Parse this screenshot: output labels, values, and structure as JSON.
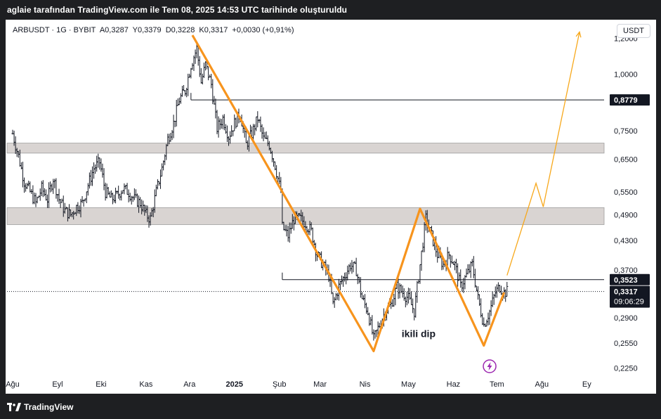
{
  "header": {
    "attribution": "aglaie tarafından TradingView.com ile Tem 08, 2025 14:53 UTC tarihinde oluşturuldu"
  },
  "legend": {
    "symbol": "ARBUSDT · 1G · BYBIT",
    "open": "A0,3287",
    "high": "Y0,3379",
    "low": "D0,3228",
    "close": "K0,3317",
    "change": "+0,0030 (+0,91%)"
  },
  "currency_button": "USDT",
  "footer": {
    "brand": "TradingView"
  },
  "colors": {
    "pattern_line": "#f7941d",
    "projection_line": "#f7a81b",
    "zone_fill": "#d9d4d2",
    "candle": "#131722",
    "live_badge": "#131722",
    "lightning_badge": "#9c27b0"
  },
  "chart_data": {
    "type": "candlestick",
    "title": "",
    "xlabel": "",
    "ylabel": "",
    "y_scale": "log",
    "ylim": [
      0.215,
      1.32
    ],
    "x_range": [
      "2024-08-01",
      "2025-09-12"
    ],
    "x_ticks": [
      {
        "date": "2024-08-01",
        "label": "Ağu",
        "bold": false
      },
      {
        "date": "2024-09-01",
        "label": "Eyl",
        "bold": false
      },
      {
        "date": "2024-10-01",
        "label": "Eki",
        "bold": false
      },
      {
        "date": "2024-11-01",
        "label": "Kas",
        "bold": false
      },
      {
        "date": "2024-12-01",
        "label": "Ara",
        "bold": false
      },
      {
        "date": "2025-01-01",
        "label": "2025",
        "bold": true
      },
      {
        "date": "2025-02-01",
        "label": "Şub",
        "bold": false
      },
      {
        "date": "2025-03-01",
        "label": "Mar",
        "bold": false
      },
      {
        "date": "2025-04-01",
        "label": "Nis",
        "bold": false
      },
      {
        "date": "2025-05-01",
        "label": "May",
        "bold": false
      },
      {
        "date": "2025-06-01",
        "label": "Haz",
        "bold": false
      },
      {
        "date": "2025-07-01",
        "label": "Tem",
        "bold": false
      },
      {
        "date": "2025-08-01",
        "label": "Ağu",
        "bold": false
      },
      {
        "date": "2025-09-01",
        "label": "Ey",
        "bold": false
      }
    ],
    "y_ticks": [
      {
        "value": 1.2,
        "label": "1,2000"
      },
      {
        "value": 1.0,
        "label": "1,0000"
      },
      {
        "value": 0.75,
        "label": "0,7500"
      },
      {
        "value": 0.65,
        "label": "0,6500"
      },
      {
        "value": 0.55,
        "label": "0,5500"
      },
      {
        "value": 0.49,
        "label": "0,4900"
      },
      {
        "value": 0.43,
        "label": "0,4300"
      },
      {
        "value": 0.37,
        "label": "0,3700"
      },
      {
        "value": 0.29,
        "label": "0,2900"
      },
      {
        "value": 0.255,
        "label": "0,2550"
      },
      {
        "value": 0.225,
        "label": "0,2250"
      }
    ],
    "price_path": [
      [
        "2024-08-01",
        0.74
      ],
      [
        "2024-08-05",
        0.66
      ],
      [
        "2024-08-09",
        0.58
      ],
      [
        "2024-08-13",
        0.55
      ],
      [
        "2024-08-17",
        0.52
      ],
      [
        "2024-08-21",
        0.56
      ],
      [
        "2024-08-25",
        0.53
      ],
      [
        "2024-08-29",
        0.59
      ],
      [
        "2024-09-02",
        0.53
      ],
      [
        "2024-09-06",
        0.5
      ],
      [
        "2024-09-10",
        0.49
      ],
      [
        "2024-09-14",
        0.51
      ],
      [
        "2024-09-18",
        0.52
      ],
      [
        "2024-09-22",
        0.57
      ],
      [
        "2024-09-26",
        0.62
      ],
      [
        "2024-09-30",
        0.64
      ],
      [
        "2024-10-04",
        0.55
      ],
      [
        "2024-10-08",
        0.53
      ],
      [
        "2024-10-12",
        0.54
      ],
      [
        "2024-10-16",
        0.56
      ],
      [
        "2024-10-20",
        0.55
      ],
      [
        "2024-10-24",
        0.53
      ],
      [
        "2024-10-28",
        0.52
      ],
      [
        "2024-11-01",
        0.49
      ],
      [
        "2024-11-04",
        0.48
      ],
      [
        "2024-11-08",
        0.55
      ],
      [
        "2024-11-12",
        0.62
      ],
      [
        "2024-11-16",
        0.72
      ],
      [
        "2024-11-20",
        0.78
      ],
      [
        "2024-11-24",
        0.88
      ],
      [
        "2024-11-28",
        0.92
      ],
      [
        "2024-12-02",
        1.05
      ],
      [
        "2024-12-06",
        1.14
      ],
      [
        "2024-12-09",
        0.96
      ],
      [
        "2024-12-12",
        1.05
      ],
      [
        "2024-12-16",
        0.95
      ],
      [
        "2024-12-20",
        0.76
      ],
      [
        "2024-12-24",
        0.8
      ],
      [
        "2024-12-28",
        0.73
      ],
      [
        "2025-01-01",
        0.78
      ],
      [
        "2025-01-05",
        0.82
      ],
      [
        "2025-01-09",
        0.7
      ],
      [
        "2025-01-13",
        0.74
      ],
      [
        "2025-01-17",
        0.8
      ],
      [
        "2025-01-21",
        0.72
      ],
      [
        "2025-01-25",
        0.7
      ],
      [
        "2025-01-29",
        0.63
      ],
      [
        "2025-02-02",
        0.55
      ],
      [
        "2025-02-03",
        0.46
      ],
      [
        "2025-02-07",
        0.44
      ],
      [
        "2025-02-11",
        0.48
      ],
      [
        "2025-02-15",
        0.48
      ],
      [
        "2025-02-19",
        0.47
      ],
      [
        "2025-02-23",
        0.45
      ],
      [
        "2025-02-27",
        0.4
      ],
      [
        "2025-03-03",
        0.38
      ],
      [
        "2025-03-07",
        0.36
      ],
      [
        "2025-03-10",
        0.31
      ],
      [
        "2025-03-14",
        0.34
      ],
      [
        "2025-03-18",
        0.36
      ],
      [
        "2025-03-22",
        0.38
      ],
      [
        "2025-03-26",
        0.37
      ],
      [
        "2025-03-30",
        0.32
      ],
      [
        "2025-04-03",
        0.3
      ],
      [
        "2025-04-07",
        0.26
      ],
      [
        "2025-04-11",
        0.28
      ],
      [
        "2025-04-15",
        0.3
      ],
      [
        "2025-04-19",
        0.31
      ],
      [
        "2025-04-23",
        0.34
      ],
      [
        "2025-04-27",
        0.33
      ],
      [
        "2025-05-01",
        0.32
      ],
      [
        "2025-05-05",
        0.3
      ],
      [
        "2025-05-09",
        0.38
      ],
      [
        "2025-05-13",
        0.48
      ],
      [
        "2025-05-17",
        0.44
      ],
      [
        "2025-05-21",
        0.4
      ],
      [
        "2025-05-25",
        0.38
      ],
      [
        "2025-05-29",
        0.4
      ],
      [
        "2025-06-02",
        0.38
      ],
      [
        "2025-06-06",
        0.34
      ],
      [
        "2025-06-10",
        0.36
      ],
      [
        "2025-06-14",
        0.38
      ],
      [
        "2025-06-18",
        0.32
      ],
      [
        "2025-06-22",
        0.28
      ],
      [
        "2025-06-26",
        0.3
      ],
      [
        "2025-06-30",
        0.33
      ],
      [
        "2025-07-03",
        0.34
      ],
      [
        "2025-07-06",
        0.33
      ],
      [
        "2025-07-08",
        0.3317
      ]
    ],
    "price_zones": [
      {
        "from": 0.67,
        "to": 0.705
      },
      {
        "from": 0.466,
        "to": 0.508
      }
    ],
    "horizontal_levels": [
      {
        "value": 0.8779,
        "label": "0,8779",
        "from_date": "2024-12-02"
      },
      {
        "value": 0.3523,
        "label": "0,3523",
        "from_date": "2025-02-03"
      }
    ],
    "current_price": {
      "value": 0.3317,
      "label": "0,3317",
      "countdown": "09:06:29"
    },
    "pattern_zigzag": [
      [
        "2024-12-03",
        1.22
      ],
      [
        "2025-04-07",
        0.245
      ],
      [
        "2025-05-09",
        0.505
      ],
      [
        "2025-06-22",
        0.252
      ],
      [
        "2025-07-06",
        0.33
      ]
    ],
    "projection_path": [
      [
        "2025-07-08",
        0.36
      ],
      [
        "2025-07-28",
        0.575
      ],
      [
        "2025-08-02",
        0.51
      ],
      [
        "2025-08-27",
        1.24
      ]
    ],
    "annotations": [
      {
        "text": "ikili dip",
        "date": "2025-05-08",
        "value": 0.263
      }
    ]
  }
}
